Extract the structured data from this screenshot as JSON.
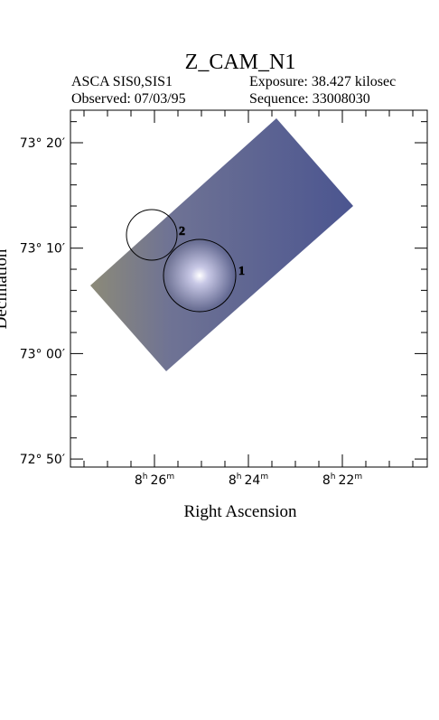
{
  "header": {
    "title": "Z_CAM_N1",
    "instrument": "ASCA SIS0,SIS1",
    "exposure": "Exposure: 38.427 kilosec",
    "observed": "Observed: 07/03/95",
    "sequence": "Sequence: 33008030"
  },
  "axes": {
    "x_label": "Right Ascension",
    "y_label": "Declination",
    "y_ticks": [
      "73° 20′",
      "73° 10′",
      "73° 00′",
      "72° 50′"
    ],
    "x_ticks": [
      [
        "8",
        "h",
        "26",
        "m"
      ],
      [
        "8",
        "h",
        "24",
        "m"
      ],
      [
        "8",
        "h",
        "22",
        "m"
      ]
    ]
  },
  "sources": [
    {
      "label": "1"
    },
    {
      "label": "2"
    }
  ]
}
